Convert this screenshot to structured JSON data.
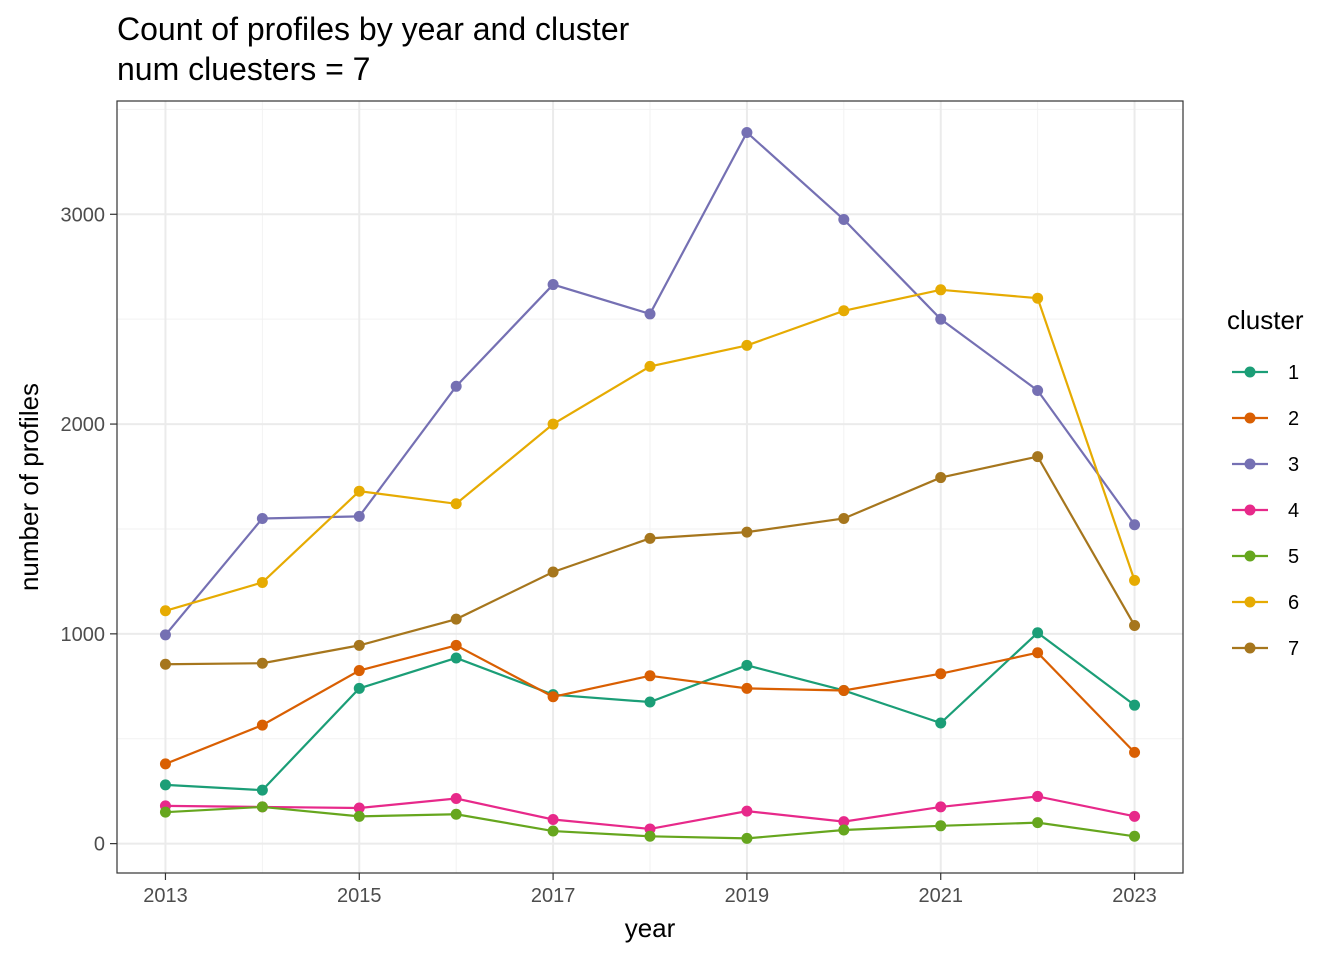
{
  "chart_data": {
    "type": "line",
    "title": "Count of profiles by year and cluster",
    "subtitle": "num cluesters = 7",
    "xlabel": "year",
    "ylabel": "number of profiles",
    "x": [
      2013,
      2014,
      2015,
      2016,
      2017,
      2018,
      2019,
      2020,
      2021,
      2022,
      2023
    ],
    "x_ticks": [
      2013,
      2015,
      2017,
      2019,
      2021,
      2023
    ],
    "x_tick_labels": [
      "2013",
      "2015",
      "2017",
      "2019",
      "2021",
      "2023"
    ],
    "y_ticks": [
      0,
      1000,
      2000,
      3000
    ],
    "y_tick_labels": [
      "0",
      "1000",
      "2000",
      "3000"
    ],
    "xlim": [
      2012.5,
      2023.5
    ],
    "ylim": [
      -140,
      3540
    ],
    "grid": true,
    "legend_title": "cluster",
    "legend_position": "right",
    "series": [
      {
        "name": "1",
        "color": "#1b9e77",
        "values": [
          280,
          255,
          740,
          885,
          710,
          675,
          850,
          730,
          575,
          1005,
          660
        ]
      },
      {
        "name": "2",
        "color": "#d95f02",
        "values": [
          380,
          565,
          825,
          945,
          700,
          800,
          740,
          730,
          810,
          910,
          435
        ]
      },
      {
        "name": "3",
        "color": "#7570b3",
        "values": [
          995,
          1550,
          1560,
          2180,
          2665,
          2525,
          3390,
          2975,
          2500,
          2160,
          1520
        ]
      },
      {
        "name": "4",
        "color": "#e7298a",
        "values": [
          180,
          175,
          170,
          215,
          115,
          70,
          155,
          105,
          175,
          225,
          130
        ]
      },
      {
        "name": "5",
        "color": "#66a61e",
        "values": [
          150,
          175,
          130,
          140,
          60,
          35,
          25,
          65,
          85,
          100,
          35
        ]
      },
      {
        "name": "6",
        "color": "#e6ab02",
        "values": [
          1110,
          1245,
          1680,
          1620,
          2000,
          2275,
          2375,
          2540,
          2640,
          2600,
          1255
        ]
      },
      {
        "name": "7",
        "color": "#a6761d",
        "values": [
          855,
          860,
          945,
          1070,
          1295,
          1455,
          1485,
          1550,
          1745,
          1845,
          1040
        ]
      }
    ]
  }
}
